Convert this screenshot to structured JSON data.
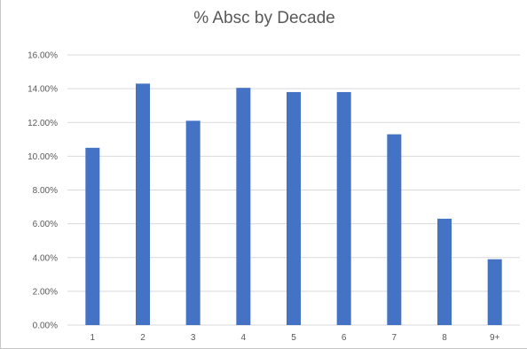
{
  "chart_data": {
    "type": "bar",
    "title": "% Absc by Decade",
    "xlabel": "",
    "ylabel": "",
    "categories": [
      "1",
      "2",
      "3",
      "4",
      "5",
      "6",
      "7",
      "8",
      "9+"
    ],
    "values": [
      10.5,
      14.3,
      12.1,
      14.05,
      13.8,
      13.8,
      11.3,
      6.3,
      3.9
    ],
    "ylim": [
      0,
      16
    ],
    "yticks": [
      0,
      2,
      4,
      6,
      8,
      10,
      12,
      14,
      16
    ],
    "ytick_labels": [
      "0.00%",
      "2.00%",
      "4.00%",
      "6.00%",
      "8.00%",
      "10.00%",
      "12.00%",
      "14.00%",
      "16.00%"
    ],
    "grid": true,
    "legend": "none",
    "colors": {
      "bar": "#4472c4",
      "grid": "#d9d9d9",
      "text": "#595959"
    }
  }
}
